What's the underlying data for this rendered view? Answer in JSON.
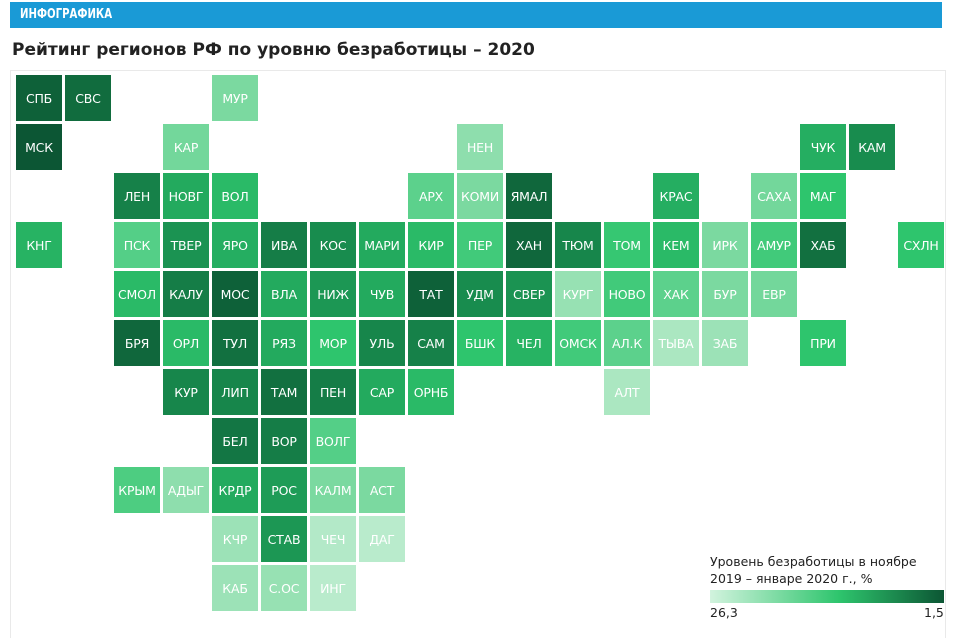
{
  "header": {
    "label": "ИНФОГРАФИКА",
    "title": "Рейтинг регионов РФ по уровню безработицы – 2020"
  },
  "legend": {
    "title_line1": "Уровень безработицы в ноябре",
    "title_line2": "2019 – январе 2020 г., %",
    "min_label": "26,3",
    "max_label": "1,5",
    "color_low": "#d2f3de",
    "color_high": "#0c5634"
  },
  "map": {
    "rows": [
      [
        [
          "СПБ",
          0.95
        ],
        [
          "СВС",
          0.9
        ],
        null,
        null,
        [
          "МУР",
          0.3
        ]
      ],
      [
        [
          "МСК",
          1.0
        ],
        null,
        null,
        [
          "КАР",
          0.32
        ],
        null,
        null,
        null,
        null,
        null,
        [
          "НЕН",
          0.25
        ],
        null,
        null,
        null,
        null,
        null,
        null,
        [
          "ЧУК",
          0.6
        ],
        [
          "КАМ",
          0.75
        ]
      ],
      [
        null,
        null,
        [
          "ЛЕН",
          0.8
        ],
        [
          "НОВГ",
          0.62
        ],
        [
          "ВОЛ",
          0.55
        ],
        null,
        null,
        null,
        [
          "АРХ",
          0.38
        ],
        [
          "КОМИ",
          0.3
        ],
        [
          "ЯМАЛ",
          0.92
        ],
        null,
        null,
        [
          "КРАС",
          0.6
        ],
        null,
        [
          "САХА",
          0.32
        ],
        [
          "МАГ",
          0.5
        ]
      ],
      [
        [
          "КНГ",
          0.58
        ],
        null,
        [
          "ПСК",
          0.4
        ],
        [
          "ТВЕР",
          0.72
        ],
        [
          "ЯРО",
          0.6
        ],
        [
          "ИВА",
          0.82
        ],
        [
          "КОС",
          0.75
        ],
        [
          "МАРИ",
          0.62
        ],
        [
          "КИР",
          0.55
        ],
        [
          "ПЕР",
          0.45
        ],
        [
          "ХАН",
          0.92
        ],
        [
          "ТЮМ",
          0.78
        ],
        [
          "ТОМ",
          0.48
        ],
        [
          "КЕМ",
          0.55
        ],
        [
          "ИРК",
          0.3
        ],
        [
          "АМУР",
          0.45
        ],
        [
          "ХАБ",
          0.88
        ],
        null,
        [
          "СХЛН",
          0.5
        ]
      ],
      [
        null,
        null,
        [
          "СМОЛ",
          0.55
        ],
        [
          "КАЛУ",
          0.82
        ],
        [
          "МОС",
          0.95
        ],
        [
          "ВЛА",
          0.62
        ],
        [
          "НИЖ",
          0.7
        ],
        [
          "ЧУВ",
          0.62
        ],
        [
          "ТАТ",
          0.95
        ],
        [
          "УДМ",
          0.75
        ],
        [
          "СВЕР",
          0.72
        ],
        [
          "КУРГ",
          0.22
        ],
        [
          "НОВО",
          0.45
        ],
        [
          "ХАК",
          0.38
        ],
        [
          "БУР",
          0.3
        ],
        [
          "ЕВР",
          0.32
        ]
      ],
      [
        null,
        null,
        [
          "БРЯ",
          0.92
        ],
        [
          "ОРЛ",
          0.55
        ],
        [
          "ТУЛ",
          0.88
        ],
        [
          "РЯЗ",
          0.62
        ],
        [
          "МОР",
          0.5
        ],
        [
          "УЛЬ",
          0.78
        ],
        [
          "САМ",
          0.8
        ],
        [
          "БШК",
          0.5
        ],
        [
          "ЧЕЛ",
          0.58
        ],
        [
          "ОМСК",
          0.45
        ],
        [
          "АЛ.К",
          0.38
        ],
        [
          "ТЫВА",
          0.15
        ],
        [
          "ЗАБ",
          0.2
        ],
        null,
        [
          "ПРИ",
          0.5
        ]
      ],
      [
        null,
        null,
        null,
        [
          "КУР",
          0.78
        ],
        [
          "ЛИП",
          0.78
        ],
        [
          "ТАМ",
          0.88
        ],
        [
          "ПЕН",
          0.82
        ],
        [
          "САР",
          0.62
        ],
        [
          "ОРНБ",
          0.55
        ],
        null,
        null,
        null,
        [
          "АЛТ",
          0.15
        ]
      ],
      [
        null,
        null,
        null,
        null,
        [
          "БЕЛ",
          0.85
        ],
        [
          "ВОР",
          0.82
        ],
        [
          "ВОЛГ",
          0.4
        ]
      ],
      [
        null,
        null,
        [
          "КРЫМ",
          0.42
        ],
        [
          "АДЫГ",
          0.25
        ],
        [
          "КРДР",
          0.62
        ],
        [
          "РОС",
          0.68
        ],
        [
          "КАЛМ",
          0.3
        ],
        [
          "АСТ",
          0.3
        ]
      ],
      [
        null,
        null,
        null,
        null,
        [
          "КЧР",
          0.2
        ],
        [
          "СТАВ",
          0.7
        ],
        [
          "ЧЕЧ",
          0.12
        ],
        [
          "ДАГ",
          0.1
        ]
      ],
      [
        null,
        null,
        null,
        null,
        [
          "КАБ",
          0.2
        ],
        [
          "С.ОС",
          0.22
        ],
        [
          "ИНГ",
          0.1
        ]
      ]
    ]
  }
}
